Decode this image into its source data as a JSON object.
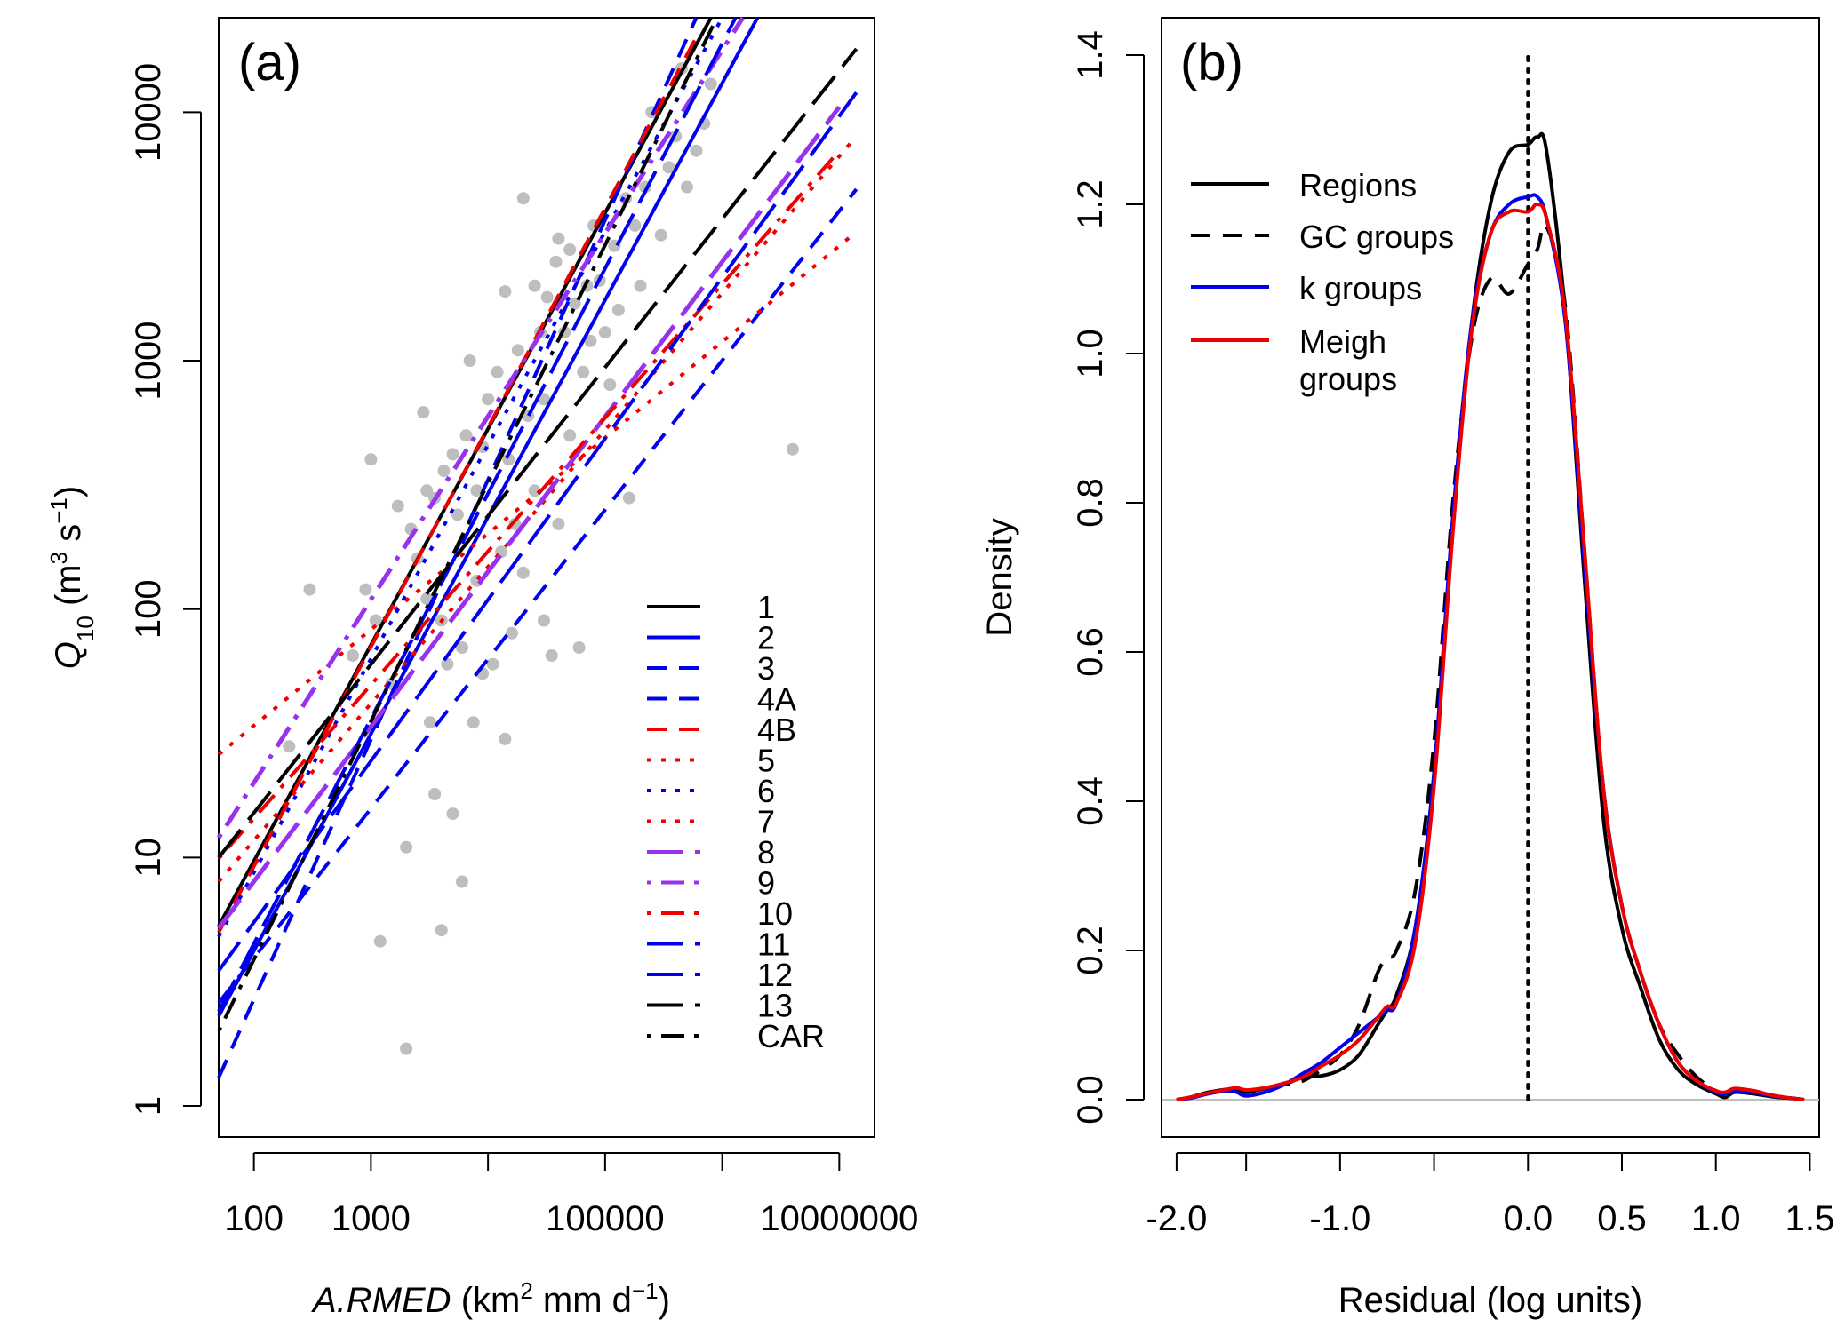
{
  "chart_data": [
    {
      "type": "scatter",
      "panel_label": "(a)",
      "log_x": true,
      "log_y": true,
      "xlabel": "A.RMED (km² mm d⁻¹)",
      "ylabel": "Q10 (m³ s⁻¹)",
      "x_ticks": [
        "100",
        "",
        "1000",
        "",
        "100000",
        "",
        "10000000"
      ],
      "y_ticks": [
        "1",
        "10",
        "100",
        "1000",
        "10000"
      ],
      "xlim": [
        50,
        20000000
      ],
      "ylim": [
        0.75,
        24000
      ],
      "grid": false,
      "legend_position": "bottom-right",
      "legend_entries": [
        "1",
        "2",
        "3",
        "4A",
        "4B",
        "5",
        "6",
        "7",
        "8",
        "9",
        "10",
        "11",
        "12",
        "13",
        "CAR"
      ],
      "colors": {
        "black": "#000000",
        "blue": "#0000ee",
        "red": "#ee0000",
        "purple": "#9932ee",
        "points": "#bebebe"
      },
      "points": [
        [
          200,
          28
        ],
        [
          300,
          120
        ],
        [
          700,
          65
        ],
        [
          900,
          120
        ],
        [
          1000,
          400
        ],
        [
          1100,
          90
        ],
        [
          1200,
          4.6
        ],
        [
          1500,
          50
        ],
        [
          1700,
          260
        ],
        [
          2000,
          1.7
        ],
        [
          2000,
          11
        ],
        [
          2200,
          210
        ],
        [
          2500,
          160
        ],
        [
          2800,
          620
        ],
        [
          3000,
          110
        ],
        [
          3000,
          300
        ],
        [
          3200,
          35
        ],
        [
          3500,
          18
        ],
        [
          3500,
          280
        ],
        [
          4000,
          5.1
        ],
        [
          4000,
          90
        ],
        [
          4200,
          360
        ],
        [
          4500,
          60
        ],
        [
          5000,
          15
        ],
        [
          5000,
          420
        ],
        [
          5500,
          240
        ],
        [
          6000,
          8
        ],
        [
          6000,
          70
        ],
        [
          6500,
          500
        ],
        [
          7000,
          1000
        ],
        [
          7500,
          35
        ],
        [
          8000,
          130
        ],
        [
          8000,
          300
        ],
        [
          9000,
          55
        ],
        [
          9000,
          450
        ],
        [
          10000,
          700
        ],
        [
          11000,
          60
        ],
        [
          12000,
          900
        ],
        [
          13000,
          170
        ],
        [
          14000,
          30
        ],
        [
          14000,
          1900
        ],
        [
          15000,
          400
        ],
        [
          16000,
          80
        ],
        [
          17000,
          220
        ],
        [
          18000,
          1100
        ],
        [
          20000,
          4500
        ],
        [
          20000,
          140
        ],
        [
          22000,
          600
        ],
        [
          25000,
          300
        ],
        [
          25000,
          2000
        ],
        [
          28000,
          1300
        ],
        [
          30000,
          90
        ],
        [
          30000,
          700
        ],
        [
          32000,
          1800
        ],
        [
          35000,
          65
        ],
        [
          38000,
          2500
        ],
        [
          40000,
          3100
        ],
        [
          40000,
          220
        ],
        [
          45000,
          1300
        ],
        [
          50000,
          500
        ],
        [
          50000,
          2800
        ],
        [
          55000,
          1700
        ],
        [
          60000,
          70
        ],
        [
          65000,
          900
        ],
        [
          70000,
          2000
        ],
        [
          75000,
          1200
        ],
        [
          80000,
          3500
        ],
        [
          90000,
          2100
        ],
        [
          100000,
          1300
        ],
        [
          110000,
          800
        ],
        [
          120000,
          2900
        ],
        [
          130000,
          1600
        ],
        [
          150000,
          4500
        ],
        [
          160000,
          280
        ],
        [
          180000,
          3500
        ],
        [
          200000,
          2000
        ],
        [
          220000,
          5000
        ],
        [
          250000,
          10000
        ],
        [
          300000,
          3200
        ],
        [
          350000,
          6000
        ],
        [
          400000,
          8000
        ],
        [
          450000,
          15000
        ],
        [
          500000,
          5000
        ],
        [
          600000,
          7000
        ],
        [
          700000,
          9000
        ],
        [
          800000,
          13000
        ],
        [
          4000000,
          440
        ]
      ],
      "series": [
        {
          "name": "1",
          "color": "black",
          "dash": "solid",
          "x": [
            50,
            800000
          ],
          "y": [
            5.3,
            24000
          ]
        },
        {
          "name": "2",
          "color": "blue",
          "dash": "solid",
          "x": [
            50,
            2000000
          ],
          "y": [
            2.3,
            24000
          ]
        },
        {
          "name": "3",
          "color": "blue",
          "dash": "dashed",
          "x": [
            50,
            14000000
          ],
          "y": [
            2.6,
            4900
          ]
        },
        {
          "name": "4A",
          "color": "blue",
          "dash": "dashed",
          "x": [
            50,
            600000
          ],
          "y": [
            1.3,
            24000
          ]
        },
        {
          "name": "4B",
          "color": "red",
          "dash": "dashed",
          "x": [
            50,
            600000
          ],
          "y": [
            5.0,
            20000
          ]
        },
        {
          "name": "5",
          "color": "red",
          "dash": "dotted",
          "x": [
            50,
            14000000
          ],
          "y": [
            26,
            3300
          ]
        },
        {
          "name": "6",
          "color": "blue",
          "dash": "dotted",
          "x": [
            50,
            1000000
          ],
          "y": [
            4.8,
            24000
          ]
        },
        {
          "name": "7",
          "color": "red",
          "dash": "dotted",
          "x": [
            50,
            14000000
          ],
          "y": [
            8.0,
            8000
          ]
        },
        {
          "name": "8",
          "color": "purple",
          "dash": "longdash",
          "x": [
            50,
            10000000
          ],
          "y": [
            5.2,
            10500
          ]
        },
        {
          "name": "9",
          "color": "purple",
          "dash": "dotdash",
          "x": [
            50,
            1500000
          ],
          "y": [
            12,
            24000
          ]
        },
        {
          "name": "10",
          "color": "red",
          "dash": "dotdash",
          "x": [
            50,
            10000000
          ],
          "y": [
            9.9,
            7000
          ]
        },
        {
          "name": "11",
          "color": "blue",
          "dash": "longdash",
          "x": [
            50,
            14000000
          ],
          "y": [
            3.5,
            12000
          ]
        },
        {
          "name": "12",
          "color": "blue",
          "dash": "longdash",
          "x": [
            50,
            1300000
          ],
          "y": [
            2.4,
            24000
          ]
        },
        {
          "name": "13",
          "color": "black",
          "dash": "longdash",
          "x": [
            50,
            14000000
          ],
          "y": [
            10,
            18000
          ]
        },
        {
          "name": "CAR",
          "color": "black",
          "dash": "dotdash",
          "x": [
            50,
            900000
          ],
          "y": [
            2.0,
            24000
          ]
        }
      ]
    },
    {
      "type": "line",
      "panel_label": "(b)",
      "xlabel": "Residual (log units)",
      "ylabel": "Density",
      "x_ticks": [
        "-2.0",
        "-1.0",
        "0.0",
        "0.5",
        "1.0",
        "1.5"
      ],
      "y_ticks": [
        "0.0",
        "0.2",
        "0.4",
        "0.6",
        "0.8",
        "1.0",
        "1.2",
        "1.4"
      ],
      "xlim": [
        -1.95,
        1.55
      ],
      "ylim": [
        -0.05,
        1.45
      ],
      "grid": false,
      "legend_position": "top-left",
      "reference_line": {
        "x": 0.0,
        "style": "dotted"
      },
      "zero_line": {
        "y": 0.0,
        "color": "#bebebe"
      },
      "x_grid": [
        -1.87,
        -1.8,
        -1.7,
        -1.6,
        -1.55,
        -1.5,
        -1.4,
        -1.3,
        -1.2,
        -1.1,
        -1.0,
        -0.9,
        -0.8,
        -0.75,
        -0.7,
        -0.6,
        -0.5,
        -0.4,
        -0.3,
        -0.2,
        -0.1,
        0.0,
        0.05,
        0.1,
        0.2,
        0.3,
        0.4,
        0.5,
        0.6,
        0.7,
        0.8,
        0.9,
        1.0,
        1.05,
        1.1,
        1.2,
        1.3,
        1.4,
        1.47
      ],
      "series": [
        {
          "name": "Regions",
          "color": "#000000",
          "dash": "solid",
          "y": [
            0.0,
            0.003,
            0.01,
            0.012,
            0.012,
            0.01,
            0.015,
            0.02,
            0.03,
            0.032,
            0.04,
            0.06,
            0.1,
            0.12,
            0.14,
            0.23,
            0.43,
            0.77,
            1.04,
            1.2,
            1.27,
            1.28,
            1.29,
            1.27,
            1.05,
            0.7,
            0.38,
            0.23,
            0.15,
            0.08,
            0.04,
            0.02,
            0.008,
            0.003,
            0.01,
            0.008,
            0.004,
            0.002,
            0.0
          ]
        },
        {
          "name": "GC groups",
          "color": "#000000",
          "dash": "dashed",
          "y": [
            0.0,
            0.003,
            0.01,
            0.014,
            0.014,
            0.01,
            0.015,
            0.02,
            0.025,
            0.04,
            0.06,
            0.1,
            0.17,
            0.19,
            0.2,
            0.28,
            0.48,
            0.8,
            1.02,
            1.1,
            1.08,
            1.12,
            1.14,
            1.17,
            1.06,
            0.74,
            0.42,
            0.26,
            0.17,
            0.1,
            0.06,
            0.03,
            0.012,
            0.008,
            0.01,
            0.008,
            0.004,
            0.002,
            0.0
          ]
        },
        {
          "name": "k groups",
          "color": "#0000ee",
          "dash": "solid",
          "y": [
            0.0,
            0.002,
            0.008,
            0.012,
            0.01,
            0.005,
            0.01,
            0.02,
            0.035,
            0.05,
            0.07,
            0.09,
            0.11,
            0.12,
            0.13,
            0.23,
            0.44,
            0.78,
            1.04,
            1.16,
            1.2,
            1.21,
            1.21,
            1.18,
            1.04,
            0.72,
            0.42,
            0.26,
            0.17,
            0.1,
            0.05,
            0.025,
            0.01,
            0.008,
            0.012,
            0.01,
            0.005,
            0.002,
            0.0
          ]
        },
        {
          "name": "Meigh groups",
          "color": "#ee0000",
          "dash": "solid",
          "y": [
            0.0,
            0.003,
            0.009,
            0.014,
            0.016,
            0.013,
            0.016,
            0.022,
            0.03,
            0.045,
            0.06,
            0.08,
            0.11,
            0.125,
            0.13,
            0.21,
            0.42,
            0.76,
            1.03,
            1.16,
            1.19,
            1.19,
            1.2,
            1.18,
            1.05,
            0.74,
            0.42,
            0.26,
            0.17,
            0.1,
            0.05,
            0.025,
            0.012,
            0.01,
            0.015,
            0.012,
            0.006,
            0.002,
            0.0
          ]
        }
      ]
    }
  ]
}
